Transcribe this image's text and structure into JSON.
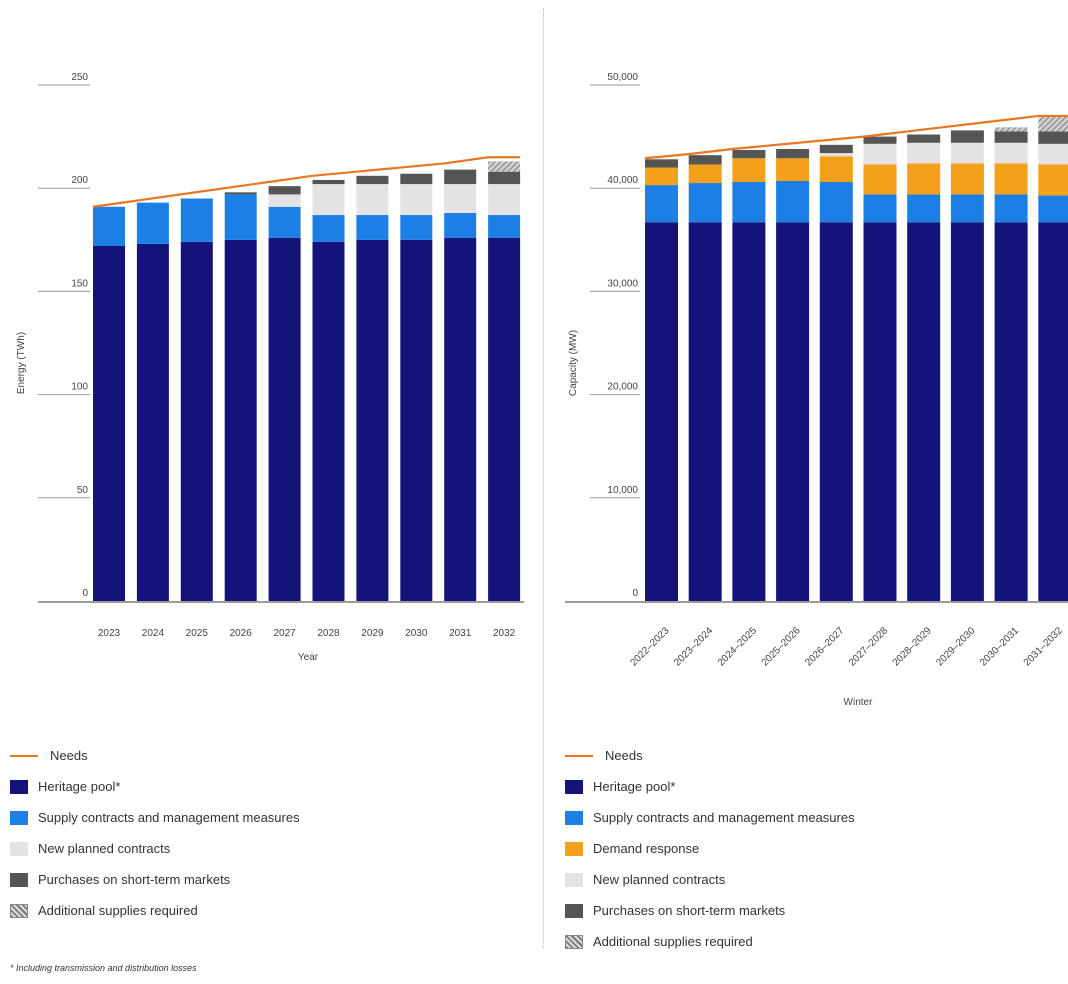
{
  "colors": {
    "heritage": "#14137A",
    "supply": "#1C7FE3",
    "demand": "#F5A01A",
    "planned": "#E3E3E3",
    "purchases": "#555555",
    "additional": "#9A9A9A",
    "needs": "#E87722",
    "axis": "#888888"
  },
  "chart_data": [
    {
      "type": "bar",
      "stacked": true,
      "xlabel": "Year",
      "ylabel": "Energy (TWh)",
      "ylim": [
        0,
        250
      ],
      "yticks": [
        "0",
        "50",
        "100",
        "150",
        "200",
        "250"
      ],
      "categories": [
        "2023",
        "2024",
        "2025",
        "2026",
        "2027",
        "2028",
        "2029",
        "2030",
        "2031",
        "2032"
      ],
      "series": [
        {
          "name": "Heritage pool*",
          "color_key": "heritage",
          "values": [
            172,
            173,
            174,
            175,
            176,
            174,
            175,
            175,
            176,
            176
          ]
        },
        {
          "name": "Supply contracts and management measures",
          "color_key": "supply",
          "values": [
            19,
            20,
            21,
            22,
            15,
            13,
            12,
            12,
            12,
            11
          ]
        },
        {
          "name": "New planned contracts",
          "color_key": "planned",
          "values": [
            0,
            0,
            0,
            0,
            6,
            15,
            15,
            15,
            14,
            15
          ]
        },
        {
          "name": "Purchases on short-term markets",
          "color_key": "purchases",
          "values": [
            0,
            0,
            0,
            1,
            4,
            2,
            4,
            5,
            7,
            6
          ]
        },
        {
          "name": "Additional supplies required",
          "color_key": "additional",
          "values": [
            0,
            0,
            0,
            0,
            0,
            0,
            0,
            0,
            0,
            5
          ]
        }
      ],
      "needs": {
        "name": "Needs",
        "values": [
          191,
          194,
          197,
          200,
          203,
          206,
          208,
          210,
          212,
          215
        ]
      }
    },
    {
      "type": "bar",
      "stacked": true,
      "xlabel": "Winter",
      "ylabel": "Capacity (MW)",
      "ylim": [
        0,
        50000
      ],
      "yticks": [
        "0",
        "10,000",
        "20,000",
        "30,000",
        "40,000",
        "50,000"
      ],
      "categories": [
        "2022–2023",
        "2023–2024",
        "2024–2025",
        "2025–2026",
        "2026–2027",
        "2027–2028",
        "2028–2029",
        "2029–2030",
        "2030–2031",
        "2031–2032"
      ],
      "series": [
        {
          "name": "Heritage pool*",
          "color_key": "heritage",
          "values": [
            36700,
            36700,
            36700,
            36700,
            36700,
            36700,
            36700,
            36700,
            36700,
            36700
          ]
        },
        {
          "name": "Supply contracts and management measures",
          "color_key": "supply",
          "values": [
            3600,
            3800,
            3900,
            4000,
            3900,
            2700,
            2700,
            2700,
            2700,
            2600
          ]
        },
        {
          "name": "Demand response",
          "color_key": "demand",
          "values": [
            1700,
            1800,
            2300,
            2200,
            2500,
            2900,
            3000,
            3000,
            3000,
            3000
          ]
        },
        {
          "name": "New planned contracts",
          "color_key": "planned",
          "values": [
            0,
            0,
            0,
            0,
            300,
            2000,
            2000,
            2000,
            2000,
            2000
          ]
        },
        {
          "name": "Purchases on short-term markets",
          "color_key": "purchases",
          "values": [
            800,
            900,
            800,
            900,
            800,
            700,
            800,
            1200,
            1100,
            1200
          ]
        },
        {
          "name": "Additional supplies required",
          "color_key": "additional",
          "values": [
            0,
            0,
            0,
            0,
            0,
            0,
            0,
            0,
            400,
            1400
          ]
        }
      ],
      "needs": {
        "name": "Needs",
        "values": [
          42900,
          43300,
          43800,
          44200,
          44600,
          45000,
          45500,
          46000,
          46500,
          47000
        ]
      }
    }
  ],
  "legend_left": [
    {
      "kind": "line",
      "label": "Needs",
      "color_key": "needs"
    },
    {
      "kind": "box",
      "label": "Heritage pool*",
      "color_key": "heritage"
    },
    {
      "kind": "box",
      "label": "Supply contracts and management measures",
      "color_key": "supply"
    },
    {
      "kind": "box",
      "label": "New planned contracts",
      "color_key": "planned"
    },
    {
      "kind": "box",
      "label": "Purchases on short-term markets",
      "color_key": "purchases"
    },
    {
      "kind": "hatch",
      "label": "Additional supplies required",
      "color_key": "additional"
    }
  ],
  "legend_right": [
    {
      "kind": "line",
      "label": "Needs",
      "color_key": "needs"
    },
    {
      "kind": "box",
      "label": "Heritage pool*",
      "color_key": "heritage"
    },
    {
      "kind": "box",
      "label": "Supply contracts and management measures",
      "color_key": "supply"
    },
    {
      "kind": "box",
      "label": "Demand response",
      "color_key": "demand"
    },
    {
      "kind": "box",
      "label": "New planned contracts",
      "color_key": "planned"
    },
    {
      "kind": "box",
      "label": "Purchases on short-term markets",
      "color_key": "purchases"
    },
    {
      "kind": "hatch",
      "label": "Additional supplies required",
      "color_key": "additional"
    }
  ],
  "footnote": "* Including transmission and distribution losses"
}
